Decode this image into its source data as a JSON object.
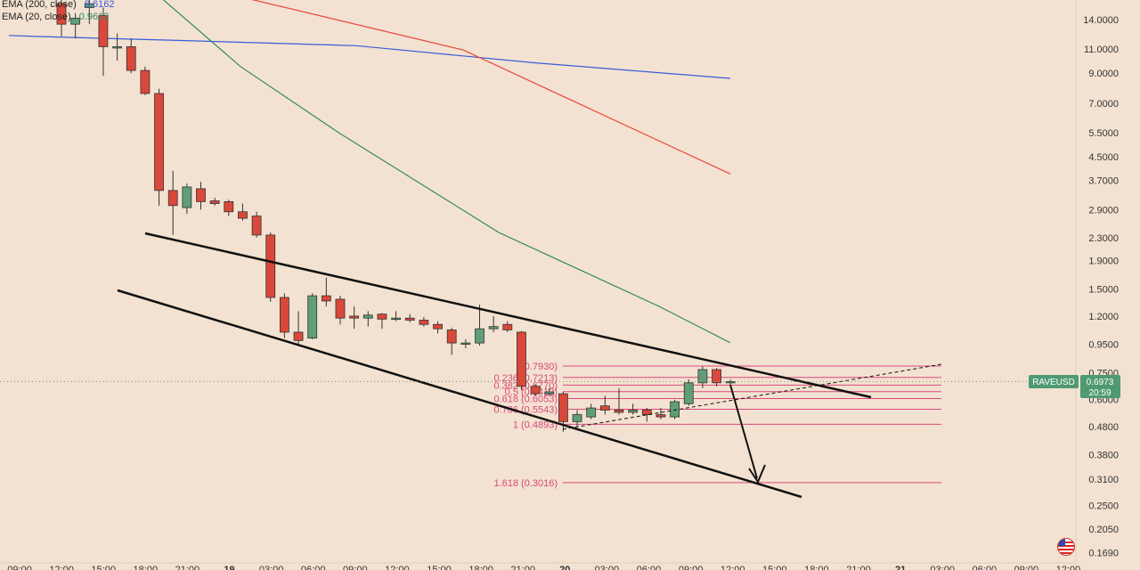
{
  "legend": [
    {
      "label": "EMA (200, close)",
      "value": "8.6162",
      "color": "#3a5bd9"
    },
    {
      "label": "EMA (20, close)",
      "value": "0.9613",
      "color": "#2f8a5e"
    }
  ],
  "price_tag": {
    "symbol": "RAVEUSD",
    "price": "0.6973",
    "countdown": "20:59",
    "color": "#4f9a72"
  },
  "chart_data": {
    "type": "candlestick",
    "symbol": "RAVEUSD",
    "y_scale": "log",
    "ylim": [
      0.155,
      16.5
    ],
    "y_ticks": [
      "14.0000",
      "11.0000",
      "9.0000",
      "7.0000",
      "5.5000",
      "4.5000",
      "3.7000",
      "2.9000",
      "2.3000",
      "1.9000",
      "1.5000",
      "1.2000",
      "0.9500",
      "0.7500",
      "0.6000",
      "0.4800",
      "0.3800",
      "0.3100",
      "0.2500",
      "0.2050",
      "0.1690"
    ],
    "x_ticks": [
      "09:00",
      "12:00",
      "15:00",
      "18:00",
      "21:00",
      "19",
      "03:00",
      "06:00",
      "09:00",
      "12:00",
      "15:00",
      "18:00",
      "21:00",
      "20",
      "03:00",
      "06:00",
      "09:00",
      "12:00",
      "15:00",
      "18:00",
      "21:00",
      "21",
      "03:00",
      "06:00",
      "09:00",
      "12:00"
    ],
    "x_tick_bold": [
      "19",
      "20",
      "21"
    ],
    "colors": {
      "up": "#5f9e78",
      "down": "#d9483a",
      "ema200": "#3a5bd9",
      "ema20": "#2f8a5e",
      "ema50": "#e8463c",
      "fib": "#d9487a",
      "trend": "#111111"
    },
    "candles": [
      {
        "o": 16.0,
        "h": 17.5,
        "l": 12.2,
        "c": 13.5
      },
      {
        "o": 13.5,
        "h": 14.8,
        "l": 12.0,
        "c": 14.2
      },
      {
        "o": 15.5,
        "h": 16.5,
        "l": 13.5,
        "c": 16.0
      },
      {
        "o": 14.5,
        "h": 15.5,
        "l": 8.8,
        "c": 11.2
      },
      {
        "o": 11.1,
        "h": 12.5,
        "l": 10.0,
        "c": 11.2
      },
      {
        "o": 11.2,
        "h": 12.0,
        "l": 9.0,
        "c": 9.2
      },
      {
        "o": 9.2,
        "h": 9.5,
        "l": 7.5,
        "c": 7.6
      },
      {
        "o": 7.6,
        "h": 7.9,
        "l": 3.0,
        "c": 3.4
      },
      {
        "o": 3.4,
        "h": 4.0,
        "l": 2.35,
        "c": 3.0
      },
      {
        "o": 2.95,
        "h": 3.6,
        "l": 2.8,
        "c": 3.5
      },
      {
        "o": 3.45,
        "h": 3.65,
        "l": 2.9,
        "c": 3.1
      },
      {
        "o": 3.12,
        "h": 3.2,
        "l": 3.0,
        "c": 3.05
      },
      {
        "o": 3.1,
        "h": 3.15,
        "l": 2.75,
        "c": 2.85
      },
      {
        "o": 2.85,
        "h": 3.05,
        "l": 2.65,
        "c": 2.7
      },
      {
        "o": 2.75,
        "h": 2.85,
        "l": 2.3,
        "c": 2.35
      },
      {
        "o": 2.35,
        "h": 2.4,
        "l": 1.35,
        "c": 1.4
      },
      {
        "o": 1.4,
        "h": 1.45,
        "l": 1.0,
        "c": 1.05
      },
      {
        "o": 1.05,
        "h": 1.25,
        "l": 0.95,
        "c": 0.98
      },
      {
        "o": 1.0,
        "h": 1.45,
        "l": 0.99,
        "c": 1.42
      },
      {
        "o": 1.42,
        "h": 1.65,
        "l": 1.3,
        "c": 1.36
      },
      {
        "o": 1.38,
        "h": 1.42,
        "l": 1.12,
        "c": 1.18
      },
      {
        "o": 1.2,
        "h": 1.3,
        "l": 1.08,
        "c": 1.18
      },
      {
        "o": 1.18,
        "h": 1.25,
        "l": 1.1,
        "c": 1.21
      },
      {
        "o": 1.22,
        "h": 1.23,
        "l": 1.08,
        "c": 1.17
      },
      {
        "o": 1.17,
        "h": 1.25,
        "l": 1.15,
        "c": 1.18
      },
      {
        "o": 1.18,
        "h": 1.22,
        "l": 1.14,
        "c": 1.16
      },
      {
        "o": 1.16,
        "h": 1.19,
        "l": 1.1,
        "c": 1.12
      },
      {
        "o": 1.12,
        "h": 1.15,
        "l": 1.04,
        "c": 1.08
      },
      {
        "o": 1.07,
        "h": 1.09,
        "l": 0.87,
        "c": 0.96
      },
      {
        "o": 0.95,
        "h": 0.99,
        "l": 0.92,
        "c": 0.96
      },
      {
        "o": 0.96,
        "h": 1.32,
        "l": 0.94,
        "c": 1.08
      },
      {
        "o": 1.08,
        "h": 1.2,
        "l": 1.05,
        "c": 1.1
      },
      {
        "o": 1.12,
        "h": 1.15,
        "l": 1.05,
        "c": 1.07
      },
      {
        "o": 1.05,
        "h": 1.06,
        "l": 0.65,
        "c": 0.67
      },
      {
        "o": 0.67,
        "h": 0.68,
        "l": 0.62,
        "c": 0.63
      },
      {
        "o": 0.63,
        "h": 0.66,
        "l": 0.62,
        "c": 0.64
      },
      {
        "o": 0.63,
        "h": 0.64,
        "l": 0.46,
        "c": 0.5
      },
      {
        "o": 0.5,
        "h": 0.55,
        "l": 0.48,
        "c": 0.53
      },
      {
        "o": 0.52,
        "h": 0.58,
        "l": 0.51,
        "c": 0.56
      },
      {
        "o": 0.57,
        "h": 0.62,
        "l": 0.53,
        "c": 0.55
      },
      {
        "o": 0.55,
        "h": 0.66,
        "l": 0.53,
        "c": 0.54
      },
      {
        "o": 0.54,
        "h": 0.58,
        "l": 0.53,
        "c": 0.55
      },
      {
        "o": 0.55,
        "h": 0.56,
        "l": 0.5,
        "c": 0.53
      },
      {
        "o": 0.53,
        "h": 0.56,
        "l": 0.51,
        "c": 0.52
      },
      {
        "o": 0.52,
        "h": 0.6,
        "l": 0.51,
        "c": 0.59
      },
      {
        "o": 0.58,
        "h": 0.71,
        "l": 0.57,
        "c": 0.69
      },
      {
        "o": 0.69,
        "h": 0.79,
        "l": 0.66,
        "c": 0.77
      },
      {
        "o": 0.77,
        "h": 0.78,
        "l": 0.67,
        "c": 0.69
      },
      {
        "o": 0.69,
        "h": 0.71,
        "l": 0.68,
        "c": 0.6973
      }
    ],
    "fib_levels": [
      {
        "label": "(0.7930)",
        "price": 0.793
      },
      {
        "label": "0.236 (0.7213)",
        "price": 0.7213
      },
      {
        "label": "0.382 (0.6770)",
        "price": 0.677
      },
      {
        "label": "0.5 (0.6412)",
        "price": 0.6412
      },
      {
        "label": "0.618 (0.6053)",
        "price": 0.6053
      },
      {
        "label": "0.786 (0.5543)",
        "price": 0.5543
      },
      {
        "label": "1 (0.4893)",
        "price": 0.4893
      },
      {
        "label": "1.618 (0.3016)",
        "price": 0.3016
      }
    ],
    "ema200": [
      12.3,
      12.2,
      11.8,
      11.3,
      9.8,
      8.6162
    ],
    "ema50": [
      19.0,
      10.9,
      3.9
    ],
    "ema20": [
      18.0,
      9.5,
      5.5,
      2.4,
      1.3,
      0.9613
    ]
  }
}
